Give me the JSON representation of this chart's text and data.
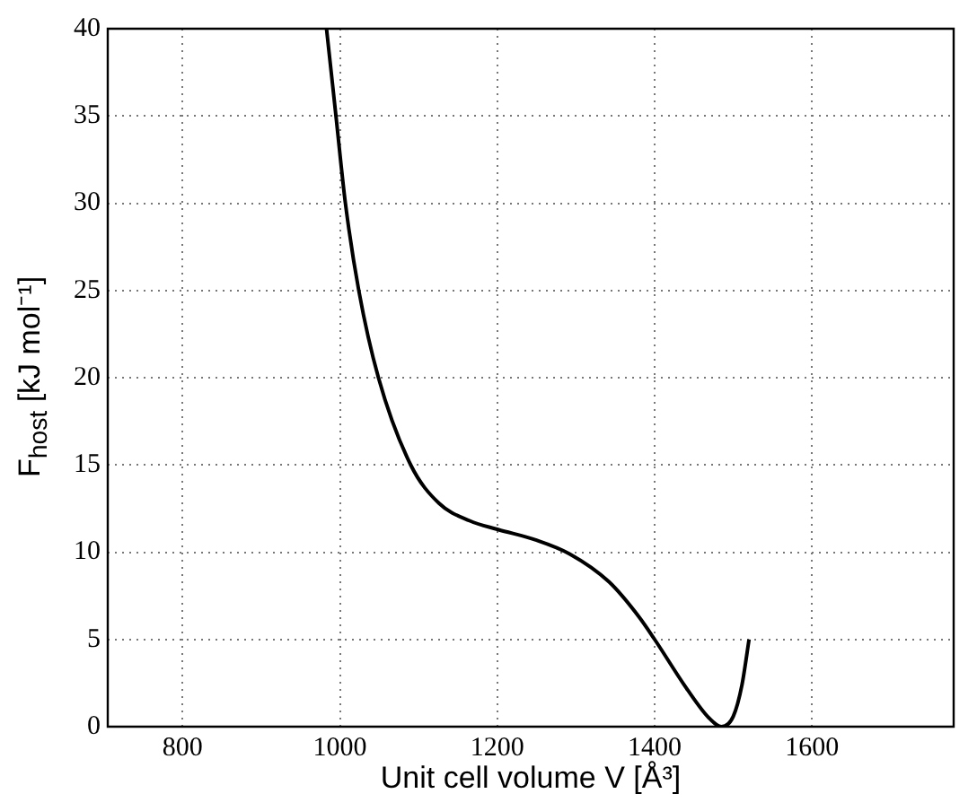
{
  "chart_data": {
    "type": "line",
    "xlabel": "Unit cell volume V [Å³]",
    "ylabel": "F$_{host}$ [kJ mol⁻¹]",
    "series": [
      {
        "color": "#000000",
        "x": [
          983,
          995,
          1007,
          1024,
          1049,
          1090,
          1126,
          1165,
          1201,
          1249,
          1292,
          1342,
          1380,
          1400,
          1442,
          1469,
          1485,
          1500,
          1511,
          1520
        ],
        "values": [
          40,
          35,
          30,
          25,
          20,
          15,
          12.8,
          11.8,
          11.3,
          10.7,
          9.9,
          8.3,
          6.3,
          5,
          2.1,
          0.5,
          0,
          0.6,
          2.4,
          5
        ]
      }
    ],
    "xlim": [
      705,
      1780
    ],
    "ylim": [
      0,
      40
    ],
    "xticks": [
      800,
      1000,
      1200,
      1400,
      1600
    ],
    "yticks": [
      0,
      5,
      10,
      15,
      20,
      25,
      30,
      35,
      40
    ],
    "grid": true,
    "line_style": "solid",
    "marker": "none",
    "legend": false
  }
}
